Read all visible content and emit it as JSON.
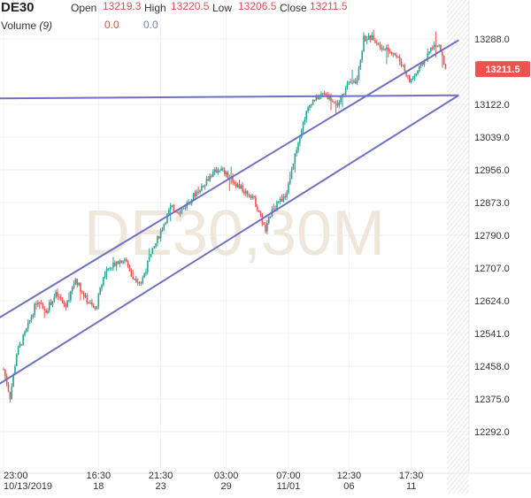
{
  "legend": {
    "symbol": "DE30",
    "open_label": "Open",
    "open_value": "13219.3",
    "high_label": "High",
    "high_value": "13220.5",
    "low_label": "Low",
    "low_value": "13206.5",
    "close_label": "Close",
    "close_value": "13211.5",
    "volume_label": "Volume",
    "volume_param": "(9)",
    "volume_value_1": "0.0",
    "volume_value_2": "0.0"
  },
  "watermark": "DE30,30M",
  "price_badge": "13211.5",
  "colors": {
    "up": "#26a69a",
    "down": "#ef5350",
    "trendline": "#7070c0",
    "legend_value_red": "#e05050",
    "legend_value_blue": "#6a7fd0",
    "grid": "#f0f0f0",
    "badge_bg": "#ef5350",
    "watermark": "#efe7dc"
  },
  "chart_data": {
    "type": "candlestick",
    "title": "DE30",
    "timeframe": "30M",
    "y_ticks": [
      13288.0,
      13122.0,
      13039.0,
      12956.0,
      12873.0,
      12790.0,
      12707.0,
      12624.0,
      12541.0,
      12458.0,
      12375.0,
      12292.0
    ],
    "y_tick_labels": [
      "13288.0",
      "13122.0",
      "13039.0",
      "12956.0",
      "12873.0",
      "12790.0",
      "12707.0",
      "12624.0",
      "12541.0",
      "12458.0",
      "12375.0",
      "12292.0"
    ],
    "x_ticks": [
      {
        "label": "23:00",
        "sublabel": "10/13/2019",
        "index": 0
      },
      {
        "label": "16:30",
        "sublabel": "18",
        "index": 58
      },
      {
        "label": "21:30",
        "sublabel": "23",
        "index": 96
      },
      {
        "label": "03:00",
        "sublabel": "29",
        "index": 136
      },
      {
        "label": "07:00",
        "sublabel": "11/01",
        "index": 174
      },
      {
        "label": "12:30",
        "sublabel": "06",
        "index": 211
      },
      {
        "label": "17:30",
        "sublabel": "11",
        "index": 249
      }
    ],
    "last_price": 13211.5,
    "anchors": [
      [
        0,
        12450
      ],
      [
        4,
        12380
      ],
      [
        8,
        12490
      ],
      [
        14,
        12550
      ],
      [
        20,
        12620
      ],
      [
        26,
        12600
      ],
      [
        32,
        12640
      ],
      [
        38,
        12610
      ],
      [
        44,
        12680
      ],
      [
        50,
        12630
      ],
      [
        56,
        12600
      ],
      [
        62,
        12700
      ],
      [
        68,
        12720
      ],
      [
        74,
        12730
      ],
      [
        78,
        12690
      ],
      [
        84,
        12670
      ],
      [
        90,
        12740
      ],
      [
        96,
        12800
      ],
      [
        102,
        12860
      ],
      [
        108,
        12850
      ],
      [
        114,
        12880
      ],
      [
        120,
        12910
      ],
      [
        126,
        12940
      ],
      [
        132,
        12960
      ],
      [
        138,
        12935
      ],
      [
        146,
        12905
      ],
      [
        152,
        12890
      ],
      [
        156,
        12850
      ],
      [
        160,
        12800
      ],
      [
        164,
        12860
      ],
      [
        168,
        12870
      ],
      [
        172,
        12890
      ],
      [
        176,
        12950
      ],
      [
        180,
        13030
      ],
      [
        184,
        13090
      ],
      [
        188,
        13130
      ],
      [
        196,
        13150
      ],
      [
        204,
        13120
      ],
      [
        210,
        13170
      ],
      [
        216,
        13180
      ],
      [
        220,
        13290
      ],
      [
        226,
        13290
      ],
      [
        232,
        13265
      ],
      [
        238,
        13255
      ],
      [
        244,
        13220
      ],
      [
        248,
        13180
      ],
      [
        252,
        13200
      ],
      [
        258,
        13240
      ],
      [
        262,
        13270
      ],
      [
        266,
        13270
      ],
      [
        270,
        13211.5
      ]
    ],
    "trendlines": [
      {
        "name": "horizontal",
        "x1": -3,
        "y1": 13137,
        "x2": 278,
        "y2": 13145
      },
      {
        "name": "channel-upper",
        "x1": -3,
        "y1": 12580,
        "x2": 278,
        "y2": 13285
      },
      {
        "name": "channel-lower",
        "x1": -3,
        "y1": 12412,
        "x2": 278,
        "y2": 13145
      }
    ]
  }
}
